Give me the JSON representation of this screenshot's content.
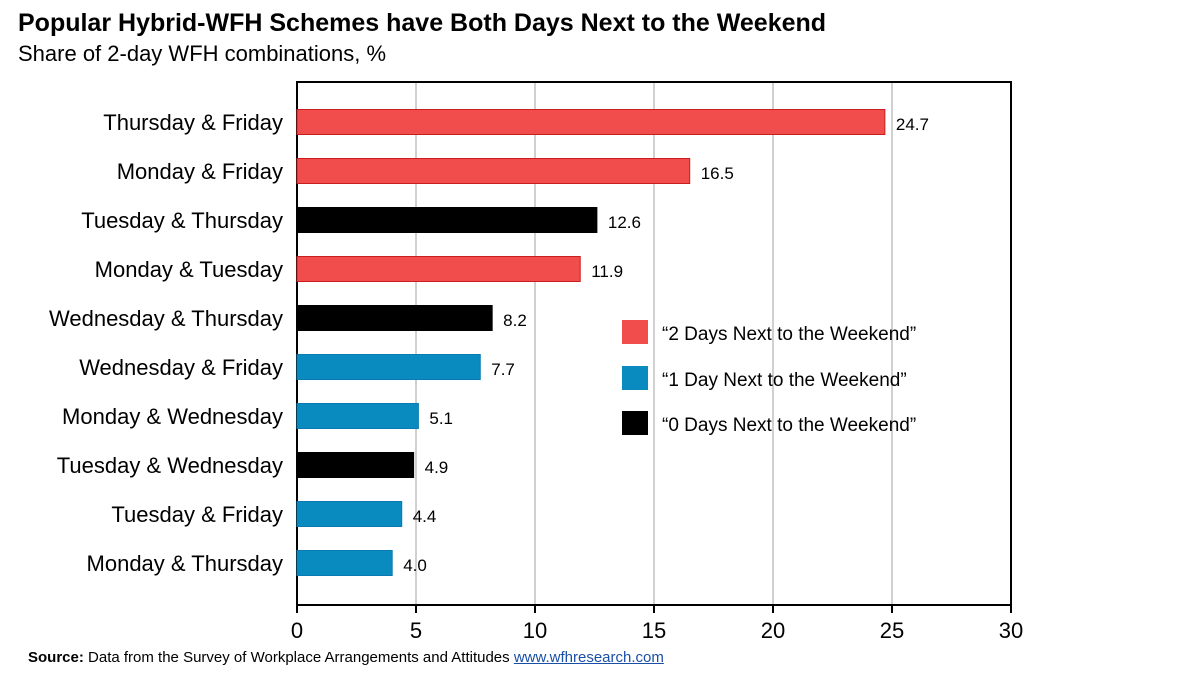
{
  "title": "Popular Hybrid-WFH Schemes have Both Days Next to the Weekend",
  "subtitle": "Share of 2-day WFH combinations, %",
  "source": {
    "label": "Source:",
    "text": "Data from the Survey of Workplace Arrangements and Attitudes",
    "link": "www.wfhresearch.com"
  },
  "colors": {
    "two_days": "#f24d4d",
    "one_day": "#0a8bbf",
    "zero_days": "#000000",
    "grid": "#d0d0d0"
  },
  "chart_data": {
    "type": "bar",
    "orientation": "horizontal",
    "title": "Popular Hybrid-WFH Schemes have Both Days Next to the Weekend",
    "subtitle": "Share of 2-day WFH combinations, %",
    "xlim": [
      0,
      30
    ],
    "xticks": [
      "0",
      "5",
      "10",
      "15",
      "20",
      "25",
      "30"
    ],
    "grid": "vertical",
    "legend_position": "right",
    "legend": [
      {
        "key": "two",
        "label": "“2 Days Next to the Weekend”"
      },
      {
        "key": "one",
        "label": "“1 Day Next to the Weekend”"
      },
      {
        "key": "zero",
        "label": "“0 Days Next to the Weekend”"
      }
    ],
    "categories": [
      "Thursday & Friday",
      "Monday & Friday",
      "Tuesday & Thursday",
      "Monday & Tuesday",
      "Wednesday & Thursday",
      "Wednesday & Friday",
      "Monday & Wednesday",
      "Tuesday & Wednesday",
      "Tuesday & Friday",
      "Monday & Thursday"
    ],
    "values": [
      24.7,
      16.5,
      12.6,
      11.9,
      8.2,
      7.7,
      5.1,
      4.9,
      4.4,
      4.0
    ],
    "value_labels": [
      "24.7",
      "16.5",
      "12.6",
      "11.9",
      "8.2",
      "7.7",
      "5.1",
      "4.9",
      "4.4",
      "4.0"
    ],
    "groups": [
      "two",
      "two",
      "zero",
      "two",
      "zero",
      "one",
      "one",
      "zero",
      "one",
      "one"
    ]
  }
}
